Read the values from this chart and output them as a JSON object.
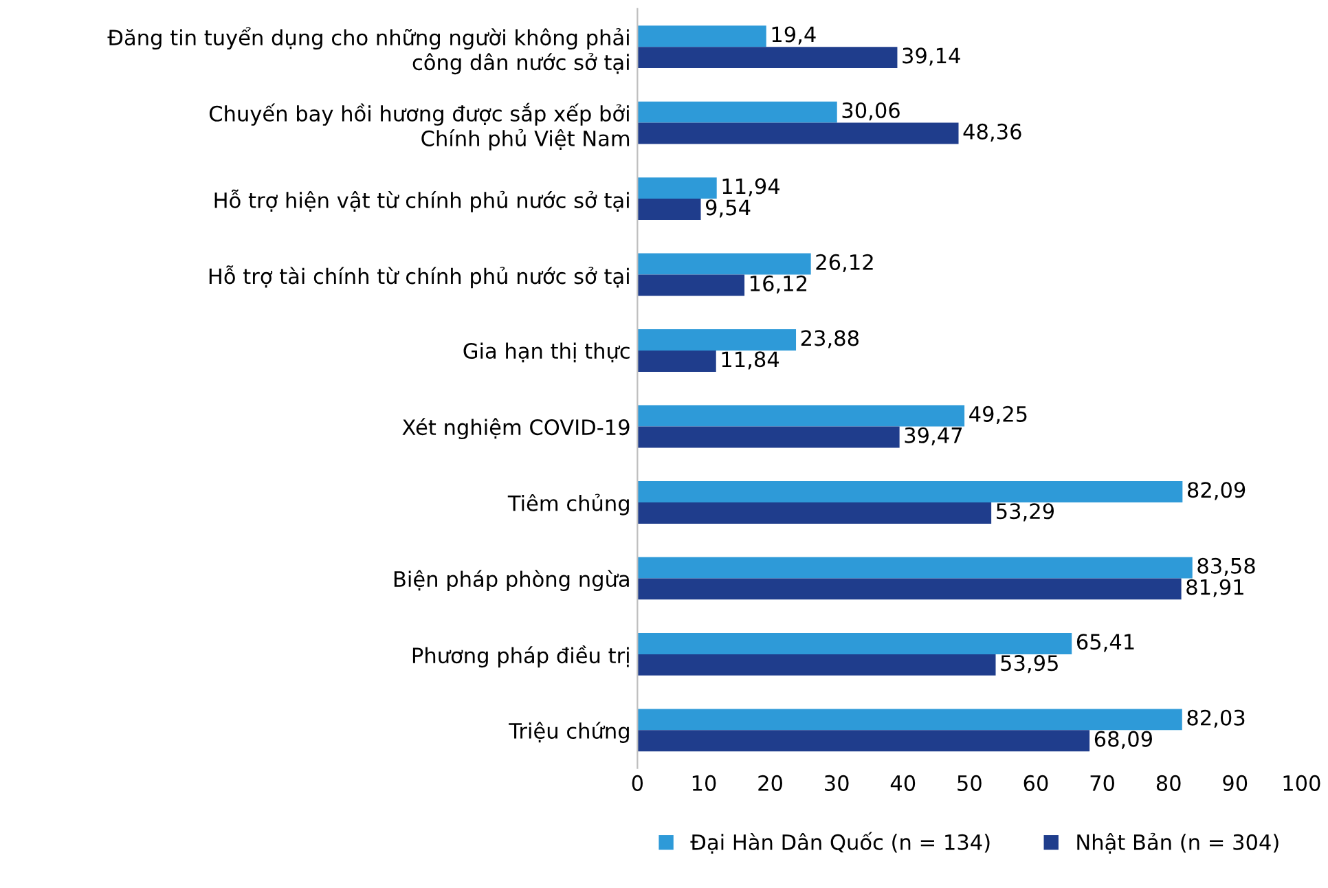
{
  "chart_data": {
    "type": "bar",
    "orientation": "horizontal",
    "categories": [
      "Đăng tin tuyển dụng cho những người không phải\ncông dân nước sở tại",
      "Chuyến bay hồi hương được sắp xếp bởi\nChính phủ Việt Nam",
      "Hỗ trợ hiện vật từ chính phủ nước sở tại",
      "Hỗ trợ tài chính từ chính phủ nước sở tại",
      "Gia hạn thị thực",
      "Xét nghiệm COVID-19",
      "Tiêm chủng",
      "Biện pháp phòng ngừa",
      "Phương pháp điều trị",
      "Triệu chứng"
    ],
    "series": [
      {
        "name": "Đại Hàn Dân Quốc (n = 134)",
        "color": "#2e9ad8",
        "values": [
          19.4,
          30.06,
          11.94,
          26.12,
          23.88,
          49.25,
          82.09,
          83.58,
          65.41,
          82.03
        ],
        "value_labels": [
          "19,4",
          "30,06",
          "11,94",
          "26,12",
          "23,88",
          "49,25",
          "82,09",
          "83,58",
          "65,41",
          "82,03"
        ]
      },
      {
        "name": "Nhật Bản (n = 304)",
        "color": "#1f3d8c",
        "values": [
          39.14,
          48.36,
          9.54,
          16.12,
          11.84,
          39.47,
          53.29,
          81.91,
          53.95,
          68.09
        ],
        "value_labels": [
          "39,14",
          "48,36",
          "9,54",
          "16,12",
          "11,84",
          "39,47",
          "53,29",
          "81,91",
          "53,95",
          "68,09"
        ]
      }
    ],
    "xlim": [
      0,
      100
    ],
    "xticks": [
      0,
      10,
      20,
      30,
      40,
      50,
      60,
      70,
      80,
      90,
      100
    ],
    "grid": false,
    "legend": "bottom"
  }
}
